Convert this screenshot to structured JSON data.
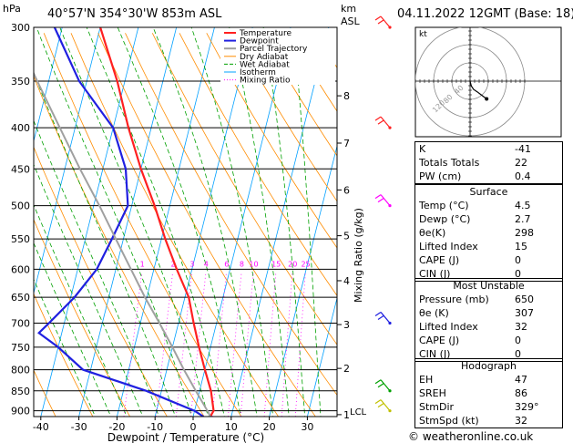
{
  "header": {
    "location": "40°57'N 354°30'W 853m ASL",
    "datetime": "04.11.2022 12GMT (Base: 18)",
    "left_unit": "hPa",
    "right_unit_top": "km",
    "right_unit_bottom": "ASL",
    "hodograph_unit": "kt"
  },
  "footer": {
    "credit": "© weatheronline.co.uk"
  },
  "colors": {
    "temperature": "#ff2020",
    "dewpoint": "#2020e0",
    "parcel": "#a0a0a0",
    "dry_adiabat": "#ff8c00",
    "wet_adiabat": "#00a000",
    "isotherm": "#00a0ff",
    "mixing_ratio": "#ff00ff"
  },
  "chart_data": {
    "type": "line",
    "chart_kind": "skew-T log-P sounding",
    "xlabel": "Dewpoint / Temperature (°C)",
    "ylabel": "hPa",
    "right_axis_label": "Mixing Ratio (g/kg)",
    "x_ticks": [
      -40,
      -30,
      -20,
      -10,
      0,
      10,
      20,
      30
    ],
    "xlim": [
      -42,
      38
    ],
    "ylim": [
      915,
      300
    ],
    "y_scale": "log",
    "pressure_levels": [
      300,
      350,
      400,
      450,
      500,
      550,
      600,
      650,
      700,
      750,
      800,
      850,
      900
    ],
    "height_km_ticks": [
      {
        "label": "1",
        "p": 910
      },
      {
        "label": "2",
        "p": 797
      },
      {
        "label": "3",
        "p": 703
      },
      {
        "label": "4",
        "p": 620
      },
      {
        "label": "5",
        "p": 545
      },
      {
        "label": "6",
        "p": 478
      },
      {
        "label": "7",
        "p": 418
      },
      {
        "label": "8",
        "p": 365
      }
    ],
    "lcl": {
      "label": "LCL",
      "p": 905
    },
    "mixing_ratio_labels": [
      "1",
      "2",
      "3",
      "4",
      "6",
      "8",
      "10",
      "15",
      "20",
      "25"
    ],
    "mixing_ratio_values": [
      1,
      2,
      3,
      4,
      6,
      8,
      10,
      15,
      20,
      25
    ],
    "legend": {
      "position": "top-center",
      "entries": [
        "Temperature",
        "Dewpoint",
        "Parcel Trajectory",
        "Dry Adiabat",
        "Wet Adiabat",
        "Isotherm",
        "Mixing Ratio"
      ]
    },
    "series": [
      {
        "name": "Temperature",
        "points": [
          [
            915,
            4.5
          ],
          [
            900,
            5
          ],
          [
            850,
            3
          ],
          [
            800,
            0
          ],
          [
            750,
            -3
          ],
          [
            700,
            -6
          ],
          [
            650,
            -9
          ],
          [
            600,
            -14
          ],
          [
            550,
            -19
          ],
          [
            500,
            -24
          ],
          [
            450,
            -30
          ],
          [
            400,
            -36
          ],
          [
            350,
            -42
          ],
          [
            300,
            -50
          ]
        ]
      },
      {
        "name": "Dewpoint",
        "points": [
          [
            915,
            2.7
          ],
          [
            900,
            0
          ],
          [
            850,
            -14
          ],
          [
            800,
            -32
          ],
          [
            750,
            -40
          ],
          [
            720,
            -46
          ],
          [
            700,
            -44
          ],
          [
            650,
            -39
          ],
          [
            600,
            -35
          ],
          [
            550,
            -33
          ],
          [
            500,
            -31
          ],
          [
            450,
            -34
          ],
          [
            400,
            -40
          ],
          [
            350,
            -52
          ],
          [
            300,
            -62
          ]
        ]
      },
      {
        "name": "Parcel Trajectory",
        "points": [
          [
            915,
            4.5
          ],
          [
            905,
            3.8
          ],
          [
            850,
            -1
          ],
          [
            800,
            -5.5
          ],
          [
            750,
            -10
          ],
          [
            700,
            -15
          ],
          [
            650,
            -20.5
          ],
          [
            600,
            -26
          ],
          [
            550,
            -32
          ],
          [
            500,
            -38.5
          ],
          [
            450,
            -46
          ],
          [
            400,
            -54
          ],
          [
            350,
            -63
          ],
          [
            300,
            -73
          ]
        ]
      }
    ],
    "wind_barbs": [
      {
        "p": 300,
        "color": "#ff2020"
      },
      {
        "p": 400,
        "color": "#ff2020"
      },
      {
        "p": 500,
        "color": "#ff00ff"
      },
      {
        "p": 700,
        "color": "#2020e0"
      },
      {
        "p": 850,
        "color": "#00a000"
      },
      {
        "p": 900,
        "color": "#c0c000"
      }
    ],
    "hodograph": {
      "ring_labels": [
        "40",
        "80",
        "120"
      ],
      "trace_kt": [
        [
          0,
          0
        ],
        [
          1,
          -4
        ],
        [
          3,
          -7
        ],
        [
          6,
          -9
        ],
        [
          10,
          -12
        ],
        [
          14,
          -15
        ]
      ]
    }
  },
  "indices": {
    "top": [
      {
        "label": "K",
        "value": "-41"
      },
      {
        "label": "Totals Totals",
        "value": "22"
      },
      {
        "label": "PW (cm)",
        "value": "0.4"
      }
    ],
    "surface": {
      "title": "Surface",
      "rows": [
        {
          "label": "Temp (°C)",
          "value": "4.5"
        },
        {
          "label": "Dewp (°C)",
          "value": "2.7"
        },
        {
          "label": "θe(K)",
          "value": "298"
        },
        {
          "label": "Lifted Index",
          "value": "15"
        },
        {
          "label": "CAPE (J)",
          "value": "0"
        },
        {
          "label": "CIN (J)",
          "value": "0"
        }
      ]
    },
    "unstable": {
      "title": "Most Unstable",
      "rows": [
        {
          "label": "Pressure (mb)",
          "value": "650"
        },
        {
          "label": "θe (K)",
          "value": "307"
        },
        {
          "label": "Lifted Index",
          "value": "32"
        },
        {
          "label": "CAPE (J)",
          "value": "0"
        },
        {
          "label": "CIN (J)",
          "value": "0"
        }
      ]
    },
    "hodograph": {
      "title": "Hodograph",
      "rows": [
        {
          "label": "EH",
          "value": "47"
        },
        {
          "label": "SREH",
          "value": "86"
        },
        {
          "label": "StmDir",
          "value": "329°"
        },
        {
          "label": "StmSpd (kt)",
          "value": "32"
        }
      ]
    }
  }
}
